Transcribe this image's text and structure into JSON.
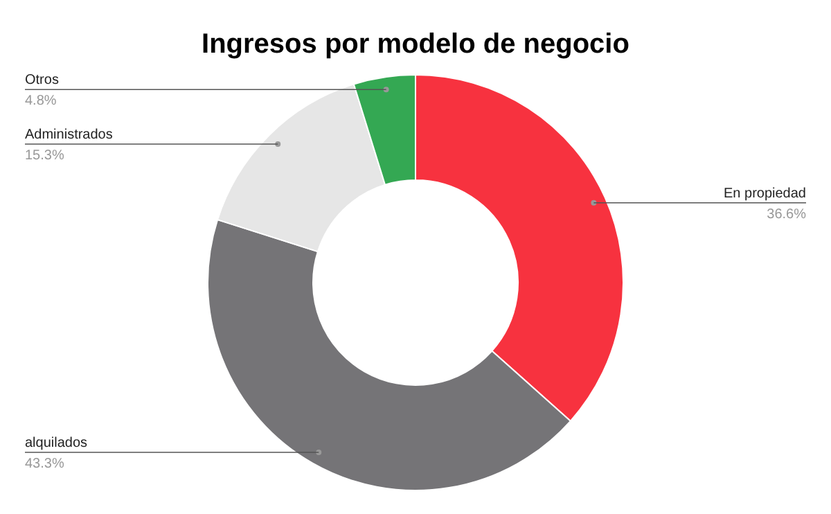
{
  "chart_data": {
    "type": "donut",
    "title": "Ingresos por modelo de negocio",
    "categories": [
      "En propiedad",
      "alquilados",
      "Administrados",
      "Otros"
    ],
    "values": [
      36.6,
      43.3,
      15.3,
      4.8
    ],
    "value_labels": [
      "36.6%",
      "43.3%",
      "15.3%",
      "4.8%"
    ],
    "colors": [
      "#f7323f",
      "#757477",
      "#e6e6e6",
      "#34a853"
    ],
    "legend": false
  }
}
